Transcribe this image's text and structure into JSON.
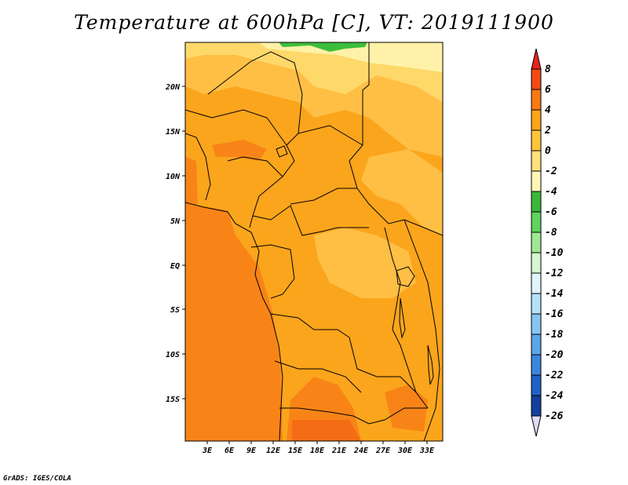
{
  "title": "Temperature at 600hPa [C], VT: 2019111900",
  "credit": "GrADS: IGES/COLA",
  "map": {
    "lat_labels": [
      "20N",
      "15N",
      "10N",
      "5N",
      "EQ",
      "5S",
      "10S",
      "15S"
    ],
    "lon_labels": [
      "3E",
      "6E",
      "9E",
      "12E",
      "15E",
      "18E",
      "21E",
      "24E",
      "27E",
      "30E",
      "33E"
    ]
  },
  "colorbar": {
    "levels": [
      "8",
      "6",
      "4",
      "2",
      "0",
      "-2",
      "-4",
      "-6",
      "-8",
      "-10",
      "-12",
      "-14",
      "-16",
      "-18",
      "-20",
      "-22",
      "-24",
      "-26"
    ],
    "colors": [
      "#e8231e",
      "#f24a12",
      "#f87a14",
      "#fba51c",
      "#ffc43c",
      "#ffe07e",
      "#fff6b6",
      "#39b838",
      "#5fd35d",
      "#9fe893",
      "#d6f7d0",
      "#dff5fb",
      "#b3e1f7",
      "#86c6f2",
      "#5aa6e8",
      "#3b86dd",
      "#1f62c8",
      "#143f9c",
      "#0c1e6e",
      "#dcdcf4"
    ]
  },
  "field_colors": {
    "band_m2": "#fff2a8",
    "band_0": "#ffd86a",
    "band_2": "#ffbf45",
    "band_4": "#fba51c",
    "band_6": "#f88418",
    "band_8": "#f46c14",
    "band_cold": "#3cbe3c"
  }
}
